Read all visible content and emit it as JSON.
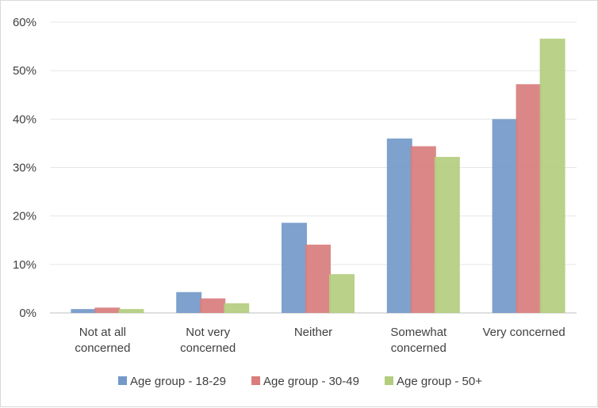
{
  "chart_data": {
    "type": "bar",
    "categories": [
      [
        "Not at all",
        "concerned"
      ],
      [
        "Not very",
        "concerned"
      ],
      [
        "Neither"
      ],
      [
        "Somewhat",
        "concerned"
      ],
      [
        "Very concerned"
      ]
    ],
    "series": [
      {
        "name": "Age group - 18-29",
        "color": "#7399c9",
        "values": [
          0.8,
          4.3,
          18.6,
          36.0,
          40.0
        ]
      },
      {
        "name": "Age group - 30-49",
        "color": "#d97d7d",
        "values": [
          1.1,
          3.0,
          14.1,
          34.4,
          47.2
        ]
      },
      {
        "name": "Age group - 50+",
        "color": "#b3cd7e",
        "values": [
          0.8,
          2.0,
          8.0,
          32.2,
          56.6
        ]
      }
    ],
    "yticks": [
      "0%",
      "10%",
      "20%",
      "30%",
      "40%",
      "50%",
      "60%"
    ],
    "ylim": [
      0,
      60
    ],
    "grid": true,
    "legend_position": "bottom"
  }
}
